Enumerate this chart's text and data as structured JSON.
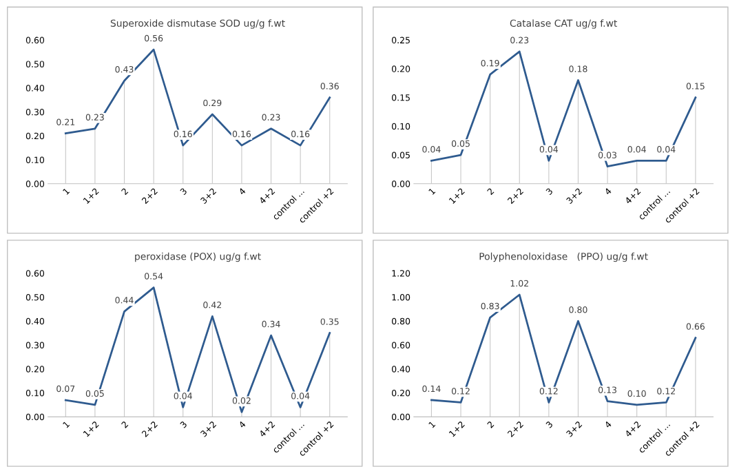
{
  "chart_data": [
    {
      "type": "line",
      "title": "Superoxide dismutase SOD ug/g f.wt",
      "categories": [
        "1",
        "1+2",
        "2",
        "2+2",
        "3",
        "3+2",
        "4",
        "4+2",
        "control ...",
        "control +2"
      ],
      "values": [
        0.21,
        0.23,
        0.43,
        0.56,
        0.16,
        0.29,
        0.16,
        0.23,
        0.16,
        0.36
      ],
      "color": "#2f5b8f",
      "ylim": [
        0,
        0.6
      ],
      "yticks": [
        {
          "value": 0,
          "label": "0.00"
        },
        {
          "value": 0.1,
          "label": "0.10"
        },
        {
          "value": 0.2,
          "label": "0.20"
        },
        {
          "value": 0.3,
          "label": "0.30"
        },
        {
          "value": 0.4,
          "label": "0.40"
        },
        {
          "value": 0.5,
          "label": "0.50"
        },
        {
          "value": 0.6,
          "label": "0.60"
        }
      ],
      "data_labels": true,
      "grid": "x",
      "legend": false,
      "marker": "none",
      "line_style": "solid"
    },
    {
      "type": "line",
      "title": "Catalase CAT ug/g f.wt",
      "categories": [
        "1",
        "1+2",
        "2",
        "2+2",
        "3",
        "3+2",
        "4",
        "4+2",
        "control ...",
        "control +2"
      ],
      "values": [
        0.04,
        0.05,
        0.19,
        0.23,
        0.04,
        0.18,
        0.03,
        0.04,
        0.04,
        0.15
      ],
      "color": "#2f5b8f",
      "ylim": [
        0,
        0.25
      ],
      "yticks": [
        {
          "value": 0,
          "label": "0.00"
        },
        {
          "value": 0.05,
          "label": "0.05"
        },
        {
          "value": 0.1,
          "label": "0.10"
        },
        {
          "value": 0.15,
          "label": "0.15"
        },
        {
          "value": 0.2,
          "label": "0.20"
        },
        {
          "value": 0.25,
          "label": "0.25"
        }
      ],
      "data_labels": true,
      "grid": "x",
      "legend": false,
      "marker": "none",
      "line_style": "solid"
    },
    {
      "type": "line",
      "title": "peroxidase (POX) ug/g f.wt",
      "categories": [
        "1",
        "1+2",
        "2",
        "2+2",
        "3",
        "3+2",
        "4",
        "4+2",
        "control ...",
        "control +2"
      ],
      "values": [
        0.07,
        0.05,
        0.44,
        0.54,
        0.04,
        0.42,
        0.02,
        0.34,
        0.04,
        0.35
      ],
      "color": "#2f5b8f",
      "ylim": [
        0,
        0.6
      ],
      "yticks": [
        {
          "value": 0,
          "label": "0.00"
        },
        {
          "value": 0.1,
          "label": "0.10"
        },
        {
          "value": 0.2,
          "label": "0.20"
        },
        {
          "value": 0.3,
          "label": "0.30"
        },
        {
          "value": 0.4,
          "label": "0.40"
        },
        {
          "value": 0.5,
          "label": "0.50"
        },
        {
          "value": 0.6,
          "label": "0.60"
        }
      ],
      "data_labels": true,
      "grid": "x",
      "legend": false,
      "marker": "none",
      "line_style": "solid"
    },
    {
      "type": "line",
      "title": "Polyphenoloxidase   (PPO) ug/g f.wt",
      "categories": [
        "1",
        "1+2",
        "2",
        "2+2",
        "3",
        "3+2",
        "4",
        "4+2",
        "control ...",
        "control +2"
      ],
      "values": [
        0.14,
        0.12,
        0.83,
        1.02,
        0.12,
        0.8,
        0.13,
        0.1,
        0.12,
        0.66
      ],
      "color": "#2f5b8f",
      "ylim": [
        0,
        1.2
      ],
      "yticks": [
        {
          "value": 0,
          "label": "0.00"
        },
        {
          "value": 0.2,
          "label": "0.20"
        },
        {
          "value": 0.4,
          "label": "0.40"
        },
        {
          "value": 0.6,
          "label": "0.60"
        },
        {
          "value": 0.8,
          "label": "0.80"
        },
        {
          "value": 1.0,
          "label": "1.00"
        },
        {
          "value": 1.2,
          "label": "1.20"
        }
      ],
      "value_labels": [
        "0.14",
        "0.12",
        "0.83",
        "1.02",
        "0.12",
        "0.80",
        "0.13",
        "0.10",
        "0.12",
        "0.66"
      ],
      "grid": "x",
      "legend": false,
      "marker": "none",
      "line_style": "solid"
    }
  ]
}
